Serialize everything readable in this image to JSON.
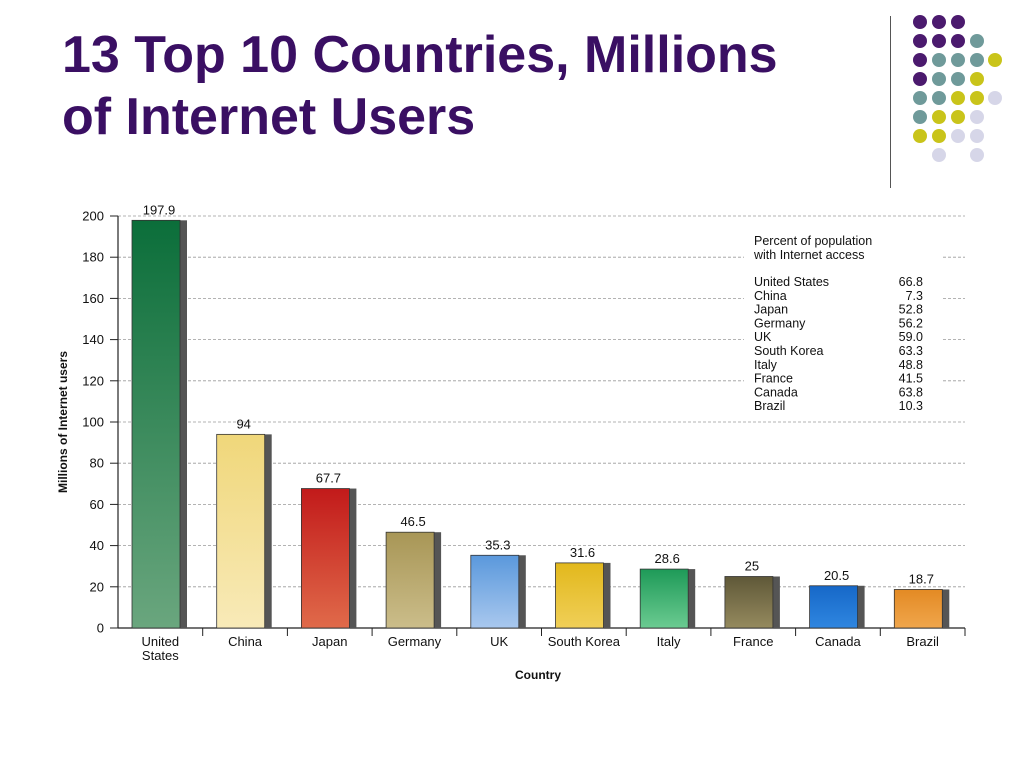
{
  "slide": {
    "title_line1": "13 Top 10 Countries, Millions",
    "title_line2": "of Internet Users",
    "accent_color": "#3a0f63",
    "decor_colors": [
      "#4b1a6e",
      "#6f9a9a",
      "#c9c41a",
      "#d6d6e8"
    ]
  },
  "chart_data": {
    "type": "bar",
    "categories": [
      "United States",
      "China",
      "Japan",
      "Germany",
      "UK",
      "South Korea",
      "Italy",
      "France",
      "Canada",
      "Brazil"
    ],
    "category_labels": [
      [
        "United",
        "States"
      ],
      [
        "China"
      ],
      [
        "Japan"
      ],
      [
        "Germany"
      ],
      [
        "UK"
      ],
      [
        "South Korea"
      ],
      [
        "Italy"
      ],
      [
        "France"
      ],
      [
        "Canada"
      ],
      [
        "Brazil"
      ]
    ],
    "values": [
      197.9,
      94,
      67.7,
      46.5,
      35.3,
      31.6,
      28.6,
      25,
      20.5,
      18.7
    ],
    "value_labels": [
      "197.9",
      "94",
      "67.7",
      "46.5",
      "35.3",
      "31.6",
      "28.6",
      "25",
      "20.5",
      "18.7"
    ],
    "bar_colors": [
      [
        "#0b6e3a",
        "#6aa67e"
      ],
      [
        "#f0d77a",
        "#f8eab8"
      ],
      [
        "#c21a1a",
        "#e06a4a"
      ],
      [
        "#a89656",
        "#cbbd8a"
      ],
      [
        "#5a98dc",
        "#a9c8ee"
      ],
      [
        "#e2b81c",
        "#f0cf58"
      ],
      [
        "#1e9a58",
        "#6bcb91"
      ],
      [
        "#5f5838",
        "#958a5e"
      ],
      [
        "#1668c8",
        "#2f86e0"
      ],
      [
        "#e38a24",
        "#f0a64c"
      ]
    ],
    "xlabel": "Country",
    "ylabel": "Millions of Internet users",
    "ylim": [
      0,
      200
    ],
    "yticks": [
      0,
      20,
      40,
      60,
      80,
      100,
      120,
      140,
      160,
      180,
      200
    ],
    "grid": true,
    "inset": {
      "title_line1": "Percent of population",
      "title_line2": "with Internet access",
      "rows": [
        {
          "country": "United States",
          "percent": "66.8"
        },
        {
          "country": "China",
          "percent": "7.3"
        },
        {
          "country": "Japan",
          "percent": "52.8"
        },
        {
          "country": "Germany",
          "percent": "56.2"
        },
        {
          "country": "UK",
          "percent": "59.0"
        },
        {
          "country": "South Korea",
          "percent": "63.3"
        },
        {
          "country": "Italy",
          "percent": "48.8"
        },
        {
          "country": "France",
          "percent": "41.5"
        },
        {
          "country": "Canada",
          "percent": "63.8"
        },
        {
          "country": "Brazil",
          "percent": "10.3"
        }
      ]
    }
  }
}
